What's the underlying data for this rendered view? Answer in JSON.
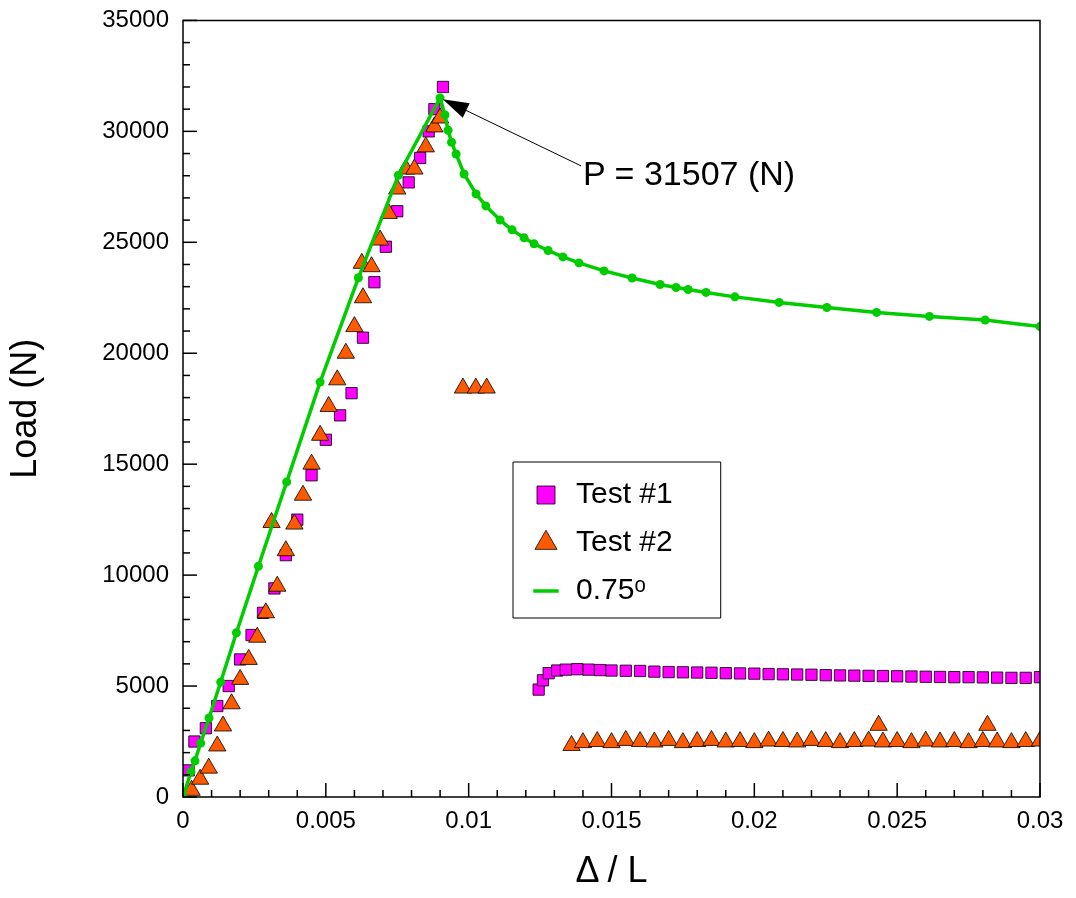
{
  "chart_data": {
    "type": "scatter",
    "xlabel": "Δ / L",
    "ylabel": "Load (N)",
    "xlim": [
      0,
      0.03
    ],
    "ylim": [
      0,
      35000
    ],
    "xticks": [
      0,
      {
        "value": 0.001,
        "label": null
      },
      {
        "value": 0.002,
        "label": null
      },
      {
        "value": 0.003,
        "label": null
      },
      {
        "value": 0.004,
        "label": null
      },
      0.005,
      {
        "value": 0.006,
        "label": null
      },
      {
        "value": 0.007,
        "label": null
      },
      {
        "value": 0.008,
        "label": null
      },
      {
        "value": 0.009,
        "label": null
      },
      0.01,
      {
        "value": 0.011,
        "label": null
      },
      {
        "value": 0.012,
        "label": null
      },
      {
        "value": 0.013,
        "label": null
      },
      {
        "value": 0.014,
        "label": null
      },
      0.015,
      {
        "value": 0.016,
        "label": null
      },
      {
        "value": 0.017,
        "label": null
      },
      {
        "value": 0.018,
        "label": null
      },
      {
        "value": 0.019,
        "label": null
      },
      0.02,
      {
        "value": 0.021,
        "label": null
      },
      {
        "value": 0.022,
        "label": null
      },
      {
        "value": 0.023,
        "label": null
      },
      {
        "value": 0.024,
        "label": null
      },
      0.025,
      {
        "value": 0.026,
        "label": null
      },
      {
        "value": 0.027,
        "label": null
      },
      {
        "value": 0.028,
        "label": null
      },
      {
        "value": 0.029,
        "label": null
      },
      0.03
    ],
    "yticks": [
      0,
      {
        "value": 1000,
        "label": null
      },
      {
        "value": 2000,
        "label": null
      },
      {
        "value": 3000,
        "label": null
      },
      {
        "value": 4000,
        "label": null
      },
      5000,
      {
        "value": 6000,
        "label": null
      },
      {
        "value": 7000,
        "label": null
      },
      {
        "value": 8000,
        "label": null
      },
      {
        "value": 9000,
        "label": null
      },
      10000,
      {
        "value": 11000,
        "label": null
      },
      {
        "value": 12000,
        "label": null
      },
      {
        "value": 13000,
        "label": null
      },
      {
        "value": 14000,
        "label": null
      },
      15000,
      {
        "value": 16000,
        "label": null
      },
      {
        "value": 17000,
        "label": null
      },
      {
        "value": 18000,
        "label": null
      },
      {
        "value": 19000,
        "label": null
      },
      20000,
      {
        "value": 21000,
        "label": null
      },
      {
        "value": 22000,
        "label": null
      },
      {
        "value": 23000,
        "label": null
      },
      {
        "value": 24000,
        "label": null
      },
      25000,
      {
        "value": 26000,
        "label": null
      },
      {
        "value": 27000,
        "label": null
      },
      {
        "value": 28000,
        "label": null
      },
      {
        "value": 29000,
        "label": null
      },
      30000,
      {
        "value": 31000,
        "label": null
      },
      {
        "value": 32000,
        "label": null
      },
      {
        "value": 33000,
        "label": null
      },
      {
        "value": 34000,
        "label": null
      },
      35000
    ],
    "legend": "right",
    "annotations": [
      "P = 31507 (N)"
    ],
    "series": [
      {
        "name": "Test #1",
        "type": "scatter",
        "marker": "square",
        "color": "#ff00ff",
        "x": [
          0.0002,
          0.0004,
          0.0008,
          0.0012,
          0.0016,
          0.002,
          0.0024,
          0.0028,
          0.0032,
          0.0036,
          0.004,
          0.0045,
          0.005,
          0.0055,
          0.0059,
          0.0063,
          0.0067,
          0.0071,
          0.0075,
          0.0079,
          0.0083,
          0.0086,
          0.0088,
          0.0091,
          0.01245,
          0.0126,
          0.0128,
          0.0131,
          0.0134,
          0.0138,
          0.0142,
          0.0146,
          0.015,
          0.0155,
          0.016,
          0.0165,
          0.017,
          0.0175,
          0.018,
          0.0185,
          0.019,
          0.0195,
          0.02,
          0.0205,
          0.021,
          0.0215,
          0.022,
          0.0225,
          0.023,
          0.0235,
          0.024,
          0.0245,
          0.025,
          0.0255,
          0.026,
          0.0265,
          0.027,
          0.0275,
          0.028,
          0.0285,
          0.029,
          0.0295,
          0.03
        ],
        "values": [
          1200,
          2500,
          3100,
          4100,
          5000,
          6200,
          7300,
          8300,
          9400,
          10900,
          12500,
          14500,
          16100,
          17200,
          18200,
          20700,
          23200,
          24800,
          26400,
          27700,
          28800,
          30000,
          31000,
          32000,
          4840,
          5260,
          5580,
          5700,
          5740,
          5760,
          5740,
          5720,
          5700,
          5690,
          5680,
          5650,
          5630,
          5620,
          5610,
          5600,
          5580,
          5570,
          5560,
          5540,
          5530,
          5520,
          5510,
          5490,
          5480,
          5470,
          5460,
          5450,
          5440,
          5430,
          5420,
          5410,
          5400,
          5400,
          5390,
          5380,
          5370,
          5370,
          5400
        ]
      },
      {
        "name": "Test #2",
        "type": "scatter",
        "marker": "triangle",
        "color": "#ff5a00",
        "x": [
          0.0003,
          0.0006,
          0.0009,
          0.0012,
          0.0014,
          0.0017,
          0.002,
          0.0023,
          0.0026,
          0.0029,
          0.0031,
          0.0033,
          0.0036,
          0.0039,
          0.0042,
          0.0045,
          0.0048,
          0.0051,
          0.0054,
          0.0057,
          0.006,
          0.00626,
          0.0063,
          0.0066,
          0.0069,
          0.0072,
          0.0075,
          0.0078,
          0.0081,
          0.0085,
          0.0088,
          0.009,
          0.0098,
          0.01025,
          0.01063,
          0.0136,
          0.014,
          0.0145,
          0.015,
          0.0155,
          0.016,
          0.0165,
          0.017,
          0.0175,
          0.018,
          0.0185,
          0.019,
          0.0195,
          0.02,
          0.0205,
          0.021,
          0.0215,
          0.022,
          0.0225,
          0.023,
          0.0235,
          0.024,
          0.02435,
          0.0245,
          0.025,
          0.0255,
          0.026,
          0.0265,
          0.027,
          0.0275,
          0.028,
          0.02816,
          0.0285,
          0.029,
          0.0295,
          0.03
        ],
        "values": [
          300,
          800,
          1300,
          2300,
          3200,
          4200,
          5300,
          6200,
          7200,
          8300,
          12370,
          9500,
          11100,
          12300,
          13600,
          15000,
          16300,
          17600,
          18800,
          20000,
          21200,
          24050,
          22500,
          23900,
          25100,
          26300,
          27400,
          28300,
          28300,
          29300,
          30200,
          30600,
          18430,
          18430,
          18430,
          2320,
          2450,
          2500,
          2450,
          2550,
          2500,
          2480,
          2550,
          2450,
          2500,
          2550,
          2480,
          2500,
          2450,
          2520,
          2500,
          2480,
          2550,
          2500,
          2450,
          2500,
          2520,
          3230,
          2480,
          2500,
          2450,
          2520,
          2480,
          2500,
          2450,
          2500,
          3230,
          2480,
          2450,
          2500,
          2520
        ]
      },
      {
        "name": "0.75ᵒ",
        "type": "line",
        "marker": "circle",
        "color": "#00cc00",
        "x": [
          0,
          0.00028,
          0.00042,
          0.00062,
          0.00091,
          0.00132,
          0.00187,
          0.00264,
          0.00363,
          0.0048,
          0.00614,
          0.00754,
          0.009,
          0.00917,
          0.00928,
          0.0094,
          0.00956,
          0.00984,
          0.01026,
          0.0106,
          0.0111,
          0.01152,
          0.01194,
          0.01229,
          0.01278,
          0.0133,
          0.01386,
          0.01474,
          0.01572,
          0.0167,
          0.01726,
          0.01768,
          0.01831,
          0.01932,
          0.02087,
          0.02254,
          0.02428,
          0.02613,
          0.02808,
          0.03
        ],
        "values": [
          0,
          1140,
          1630,
          2430,
          3560,
          5180,
          7400,
          10400,
          14200,
          18700,
          23400,
          28020,
          31507,
          30740,
          30050,
          29510,
          28980,
          28080,
          27180,
          26640,
          26000,
          25560,
          25200,
          24930,
          24630,
          24340,
          24070,
          23710,
          23390,
          23100,
          22960,
          22870,
          22740,
          22540,
          22290,
          22060,
          21840,
          21660,
          21500,
          21200
        ]
      }
    ]
  }
}
